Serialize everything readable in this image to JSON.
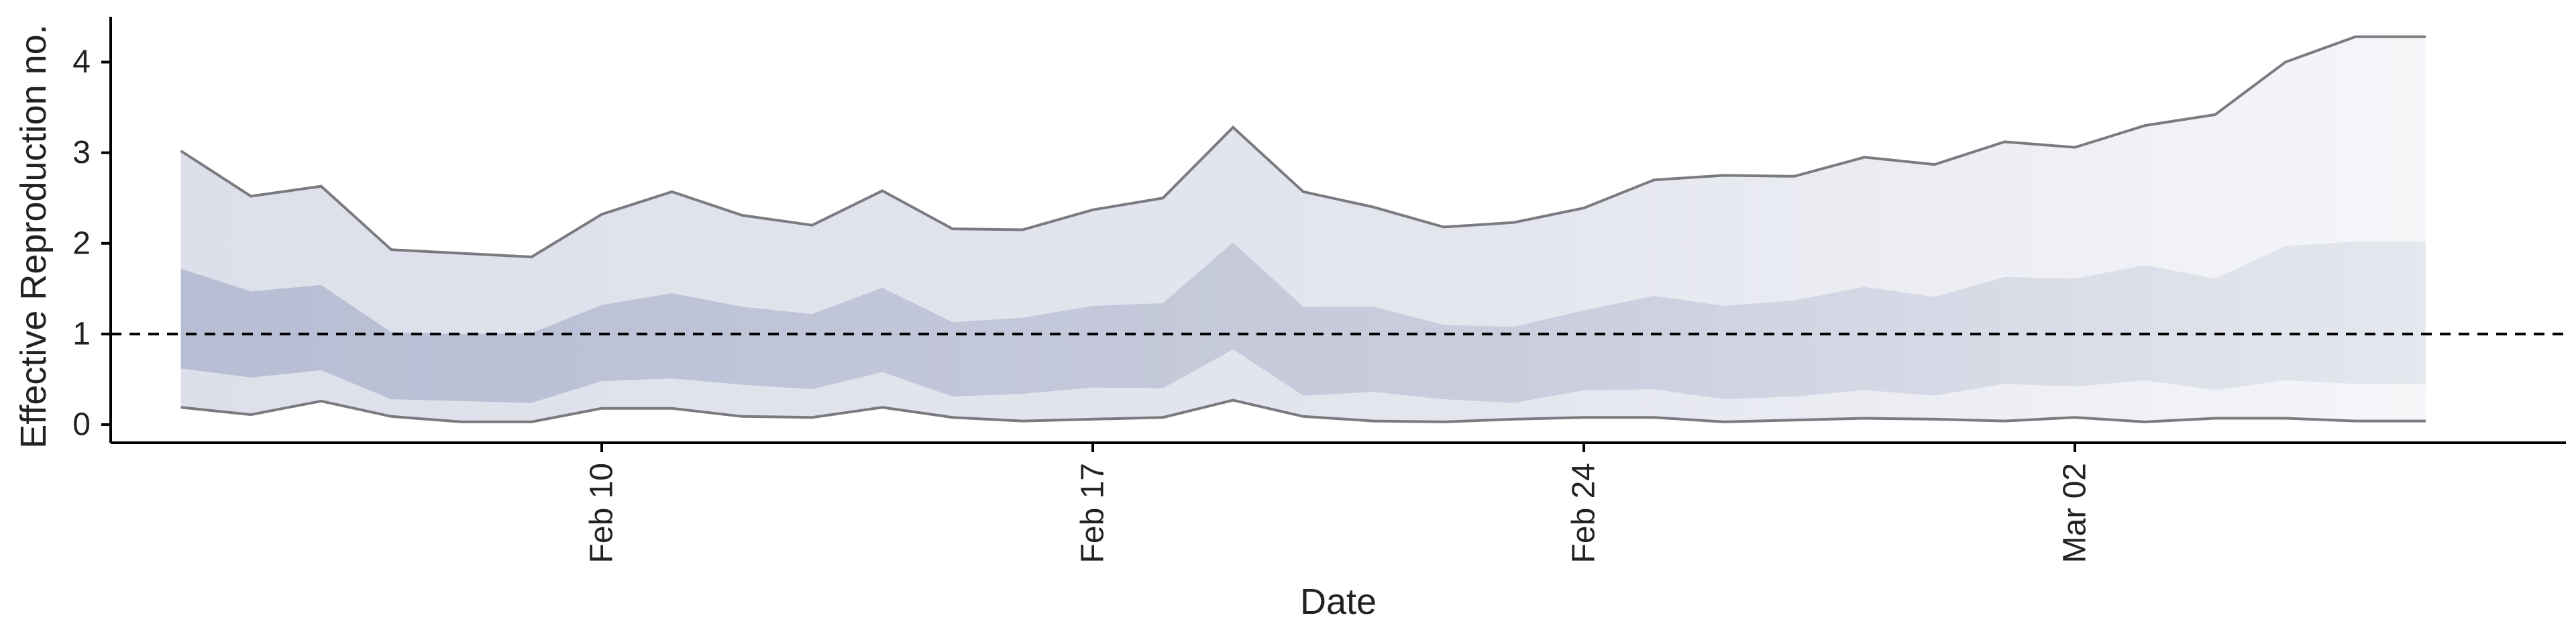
{
  "chart_data": {
    "type": "area",
    "xlabel": "Date",
    "ylabel": "Effective Reproduction no.",
    "x_tick_labels": [
      "Feb 10",
      "Feb 17",
      "Feb 24",
      "Mar 02"
    ],
    "x_tick_dates": [
      "2020-02-10",
      "2020-02-17",
      "2020-02-24",
      "2020-03-02"
    ],
    "y_ticks": [
      0,
      1,
      2,
      3,
      4
    ],
    "ylim": [
      -0.2,
      4.5
    ],
    "xlim": [
      "2020-02-03",
      "2020-03-09"
    ],
    "reference_line": {
      "y": 1,
      "style": "dashed"
    },
    "dates": [
      "2020-02-04",
      "2020-02-05",
      "2020-02-06",
      "2020-02-07",
      "2020-02-08",
      "2020-02-09",
      "2020-02-10",
      "2020-02-11",
      "2020-02-12",
      "2020-02-13",
      "2020-02-14",
      "2020-02-15",
      "2020-02-16",
      "2020-02-17",
      "2020-02-18",
      "2020-02-19",
      "2020-02-20",
      "2020-02-21",
      "2020-02-22",
      "2020-02-23",
      "2020-02-24",
      "2020-02-25",
      "2020-02-26",
      "2020-02-27",
      "2020-02-28",
      "2020-02-29",
      "2020-03-01",
      "2020-03-02",
      "2020-03-03",
      "2020-03-04",
      "2020-03-05",
      "2020-03-06",
      "2020-03-07"
    ],
    "upper_95": [
      3.02,
      2.52,
      2.63,
      1.93,
      1.89,
      1.85,
      2.32,
      2.57,
      2.31,
      2.2,
      2.58,
      2.16,
      2.15,
      2.37,
      2.5,
      3.28,
      2.57,
      2.4,
      2.18,
      2.23,
      2.39,
      2.7,
      2.75,
      2.74,
      2.95,
      2.87,
      3.12,
      3.06,
      3.3,
      3.42,
      4.0,
      4.28,
      4.28
    ],
    "upper_50": [
      1.72,
      1.47,
      1.54,
      1.02,
      1.0,
      1.01,
      1.32,
      1.45,
      1.3,
      1.22,
      1.51,
      1.13,
      1.18,
      1.31,
      1.34,
      2.01,
      1.3,
      1.3,
      1.1,
      1.08,
      1.26,
      1.42,
      1.31,
      1.37,
      1.52,
      1.41,
      1.63,
      1.61,
      1.76,
      1.61,
      1.97,
      2.02,
      2.02
    ],
    "lower_50": [
      0.62,
      0.52,
      0.6,
      0.28,
      0.26,
      0.24,
      0.48,
      0.51,
      0.44,
      0.39,
      0.58,
      0.31,
      0.34,
      0.41,
      0.4,
      0.83,
      0.32,
      0.36,
      0.28,
      0.24,
      0.38,
      0.39,
      0.28,
      0.31,
      0.38,
      0.32,
      0.45,
      0.42,
      0.49,
      0.38,
      0.49,
      0.45,
      0.45
    ],
    "lower_95": [
      0.19,
      0.11,
      0.26,
      0.09,
      0.03,
      0.03,
      0.18,
      0.18,
      0.09,
      0.08,
      0.19,
      0.08,
      0.04,
      0.06,
      0.08,
      0.27,
      0.09,
      0.04,
      0.03,
      0.06,
      0.08,
      0.08,
      0.03,
      0.05,
      0.07,
      0.06,
      0.04,
      0.08,
      0.03,
      0.07,
      0.07,
      0.04,
      0.04
    ],
    "colors": {
      "band_95": "#dde0ea",
      "band_50": "#b7bdd3",
      "bound_line": "#7a7a80",
      "axis": "#000000",
      "reference_line": "#000000"
    },
    "grid": false,
    "legend": "none"
  }
}
